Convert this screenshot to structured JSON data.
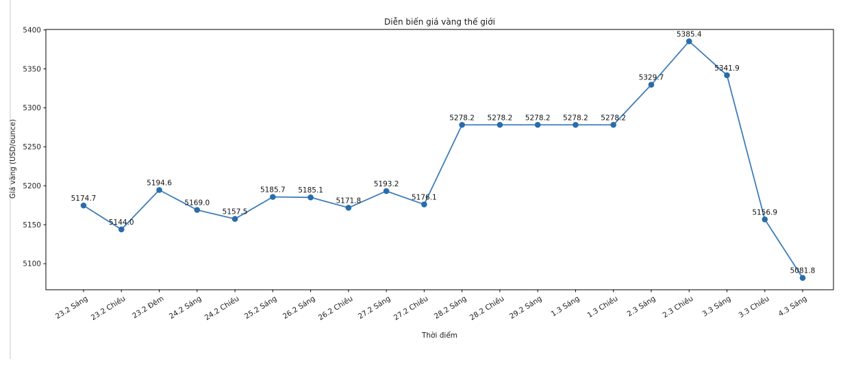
{
  "page": {
    "background_color": "#ffffff",
    "divider_color": "#e3e3e3"
  },
  "chart_data": {
    "type": "line",
    "title": "Diễn biến giá vàng thế giới",
    "xlabel": "Thời điểm",
    "ylabel": "Giá vàng (USD/ounce)",
    "categories": [
      "23.2 Sáng",
      "23.2 Chiều",
      "23.2 Đêm",
      "24.2 Sáng",
      "24.2 Chiều",
      "25.2 Sáng",
      "26.2 Sáng",
      "26.2 Chiều",
      "27.2 Sáng",
      "27.2 Chiều",
      "28.2 Sáng",
      "28.2 Chiều",
      "29.2 Sáng",
      "1.3 Sáng",
      "1.3 Chiều",
      "2.3 Sáng",
      "2.3 Chiều",
      "3.3 Sáng",
      "3.3 Chiều",
      "4.3 Sáng"
    ],
    "values": [
      5174.7,
      5144.0,
      5194.6,
      5169.0,
      5157.5,
      5185.7,
      5185.1,
      5171.8,
      5193.2,
      5176.1,
      5278.2,
      5278.2,
      5278.2,
      5278.2,
      5278.2,
      5329.7,
      5385.4,
      5341.9,
      5156.9,
      5081.8
    ],
    "point_label_decimals": 1,
    "yticks": [
      5100,
      5150,
      5200,
      5250,
      5300,
      5350,
      5400
    ],
    "ylim": [
      5066.6,
      5400.6
    ],
    "grid": false,
    "legend_position": "none",
    "x_tick_rotation_deg": 32,
    "line_color": "#3d7cb9",
    "marker_color": "#2a6cab",
    "axis_color": "#000000",
    "text_color": "#262626",
    "annotation_color": "#111111"
  }
}
